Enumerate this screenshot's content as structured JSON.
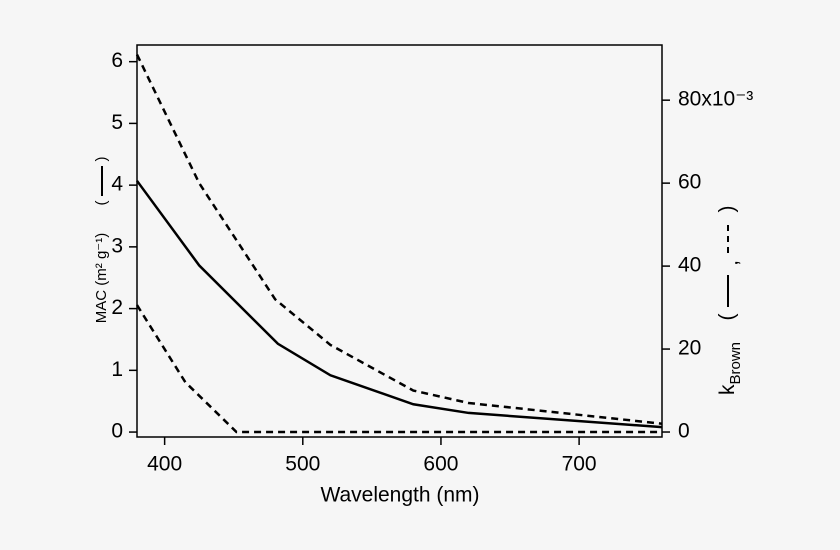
{
  "chart_data": {
    "type": "line",
    "xlabel": "Wavelength (nm)",
    "ylabel": "MAC (m² g⁻¹)",
    "y2label": "k",
    "y2label_subscript": "Brown",
    "xlim": [
      380,
      760
    ],
    "xticks": [
      400,
      500,
      600,
      700
    ],
    "ylim": [
      -0.08,
      6.27
    ],
    "yticks": [
      0,
      1,
      2,
      3,
      4,
      5,
      6
    ],
    "y2lim": [
      -1.2,
      93.3
    ],
    "y2ticks": [
      0,
      20,
      40,
      60,
      {
        "value": 80,
        "label": "80x10⁻³"
      }
    ],
    "series": [
      {
        "color": "#000000",
        "dash": false,
        "axis": "y",
        "x": [
          380,
          425,
          482,
          520,
          580,
          620,
          760
        ],
        "values": [
          4.07,
          2.7,
          1.43,
          0.92,
          0.45,
          0.31,
          0.08
        ]
      },
      {
        "color": "#000000",
        "dash": true,
        "axis": "y2",
        "x": [
          380,
          425,
          480,
          520,
          580,
          620,
          760
        ],
        "values": [
          91,
          60,
          32,
          21,
          10,
          7,
          2
        ]
      },
      {
        "color": "#000000",
        "dash": true,
        "axis": "y2",
        "x": [
          380,
          415,
          452,
          760
        ],
        "values": [
          30.6,
          12,
          0,
          0
        ]
      }
    ]
  }
}
